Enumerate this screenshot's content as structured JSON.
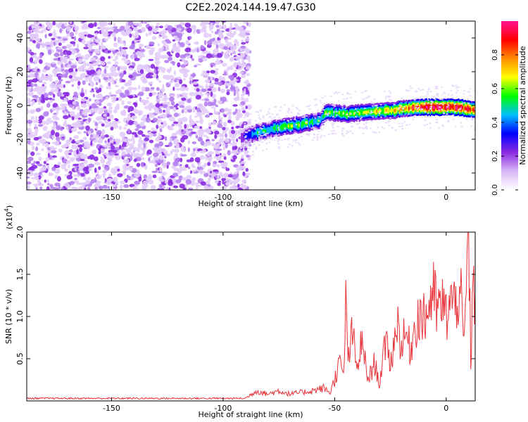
{
  "title": "C2E2.2024.144.19.47.G30",
  "chart_data": [
    {
      "type": "heatmap",
      "xlabel": "Height of straight line (km)",
      "ylabel": "Frequency (Hz)",
      "xlim": [
        -188,
        13
      ],
      "ylim": [
        -50,
        50
      ],
      "xticks": [
        -150,
        -100,
        -50,
        0
      ],
      "yticks": [
        -40,
        -20,
        0,
        20,
        40
      ],
      "colorbar": {
        "label": "Normalized spectral amplitude",
        "range": [
          0,
          1
        ],
        "ticks": [
          0.0,
          0.2,
          0.4,
          0.6,
          0.8
        ],
        "colors": [
          "#ffffff",
          "#d9b8f5",
          "#8a2be2",
          "#0000ff",
          "#00bfff",
          "#00ff00",
          "#ffff00",
          "#ff8c00",
          "#ff0000",
          "#ff1493"
        ]
      },
      "noise_region": {
        "x": [
          -188,
          -88
        ],
        "y": [
          -50,
          50
        ],
        "amplitude_range": [
          0.02,
          0.25
        ]
      },
      "ridge": {
        "x": [
          -92,
          -85,
          -75,
          -65,
          -57,
          -54,
          -45,
          -35,
          -25,
          -15,
          -5,
          5,
          13
        ],
        "y": [
          -19,
          -16,
          -13,
          -11,
          -9,
          -4,
          -5,
          -4,
          -3,
          -1,
          -1,
          -1,
          -3
        ],
        "peak_amplitude": [
          0.25,
          0.5,
          0.55,
          0.55,
          0.5,
          0.55,
          0.6,
          0.65,
          0.7,
          0.85,
          0.95,
          0.95,
          0.8
        ]
      }
    },
    {
      "type": "line",
      "xlabel": "Height of straight line (km)",
      "ylabel": "SNR (10 * v/v)",
      "yscale_label": "(x10",
      "yscale_exp": "4",
      "yscale_close": ")",
      "xlim": [
        -188,
        13
      ],
      "ylim": [
        0,
        2.0
      ],
      "xticks": [
        -150,
        -100,
        -50,
        0
      ],
      "yticks": [
        0.5,
        1.0,
        1.5,
        2.0
      ],
      "color": "#e8333a",
      "series": [
        {
          "x": [
            -188,
            -150,
            -100,
            -90,
            -85,
            -80,
            -75,
            -70,
            -65,
            -60,
            -55,
            -52,
            -50,
            -48,
            -46,
            -45,
            -44,
            -42,
            -40,
            -38,
            -35,
            -32,
            -30,
            -28,
            -26,
            -25,
            -22,
            -20,
            -18,
            -16,
            -14,
            -12,
            -10,
            -8,
            -6,
            -4,
            -2,
            0,
            2,
            4,
            6,
            7,
            8,
            9,
            10,
            11,
            12,
            13
          ],
          "y": [
            0.03,
            0.03,
            0.03,
            0.03,
            0.12,
            0.08,
            0.12,
            0.08,
            0.1,
            0.12,
            0.15,
            0.1,
            0.25,
            0.45,
            0.3,
            1.1,
            0.5,
            0.8,
            0.35,
            0.7,
            0.25,
            0.45,
            0.2,
            0.55,
            0.7,
            0.4,
            0.95,
            0.65,
            0.8,
            0.6,
            0.9,
            1.05,
            0.95,
            1.1,
            1.3,
            1.05,
            1.15,
            1.0,
            1.2,
            1.1,
            1.4,
            1.05,
            0.6,
            1.35,
            2.0,
            0.5,
            1.25,
            1.3
          ]
        }
      ]
    }
  ]
}
